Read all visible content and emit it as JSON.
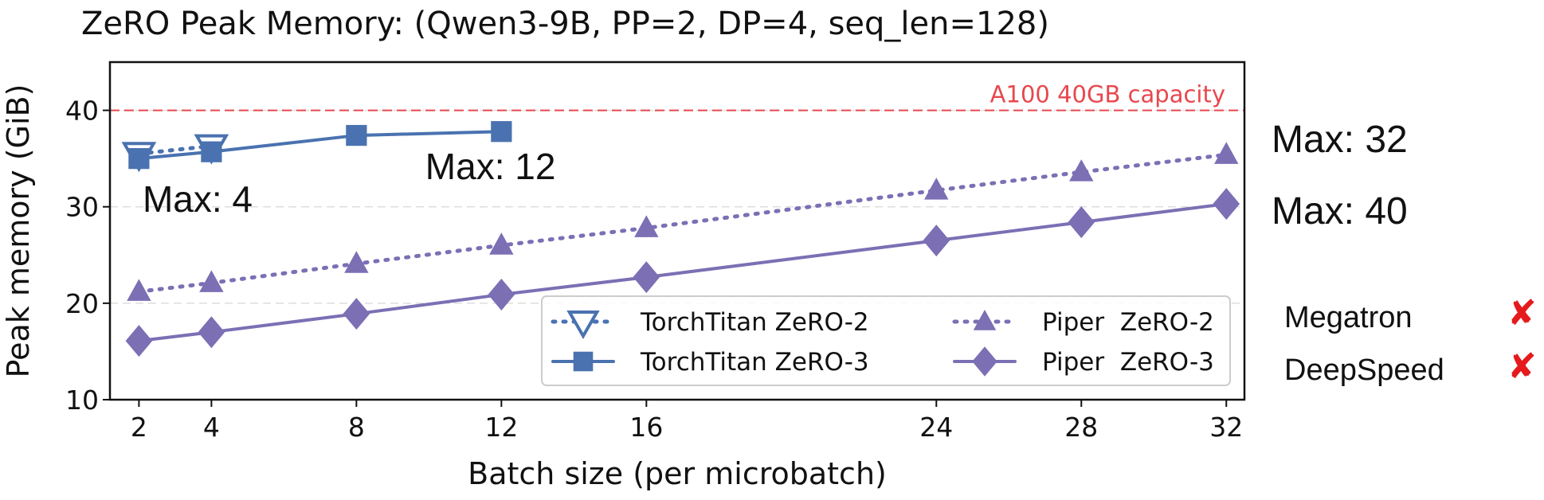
{
  "chart_data": {
    "type": "line",
    "title": "ZeRO Peak Memory: (Qwen3-9B, PP=2, DP=4, seq_len=128)",
    "xlabel": "Batch size (per microbatch)",
    "ylabel": "Peak memory (GiB)",
    "xlim": [
      1.2,
      32.5
    ],
    "ylim": [
      10,
      45
    ],
    "xticks": [
      2,
      4,
      8,
      12,
      16,
      24,
      28,
      32
    ],
    "yticks": [
      10,
      20,
      30,
      40
    ],
    "grid": "horizontal dashed",
    "legend_position": "lower-right",
    "capacity_line": {
      "y": 40,
      "label": "A100 40GB capacity",
      "color": "#e8474e"
    },
    "series": [
      {
        "name": "TorchTitan ZeRO-2",
        "color": "#4a72b0",
        "line": "dotted",
        "marker": "triangle-down-open",
        "x": [
          2,
          4
        ],
        "y": [
          35.5,
          36.3
        ]
      },
      {
        "name": "TorchTitan ZeRO-3",
        "color": "#4a72b0",
        "line": "solid",
        "marker": "square",
        "x": [
          2,
          4,
          8,
          12
        ],
        "y": [
          35.0,
          35.7,
          37.4,
          37.8
        ]
      },
      {
        "name": "Piper  ZeRO-2",
        "color": "#7c6fb4",
        "line": "dotted",
        "marker": "triangle-up",
        "x": [
          2,
          4,
          8,
          12,
          16,
          24,
          28,
          32
        ],
        "y": [
          21.2,
          22.1,
          24.1,
          26.0,
          27.8,
          31.7,
          33.6,
          35.4
        ]
      },
      {
        "name": "Piper  ZeRO-3",
        "color": "#7c6fb4",
        "line": "solid",
        "marker": "diamond",
        "x": [
          2,
          4,
          8,
          12,
          16,
          24,
          28,
          32
        ],
        "y": [
          16.1,
          17.0,
          18.9,
          20.9,
          22.7,
          26.5,
          28.4,
          30.3
        ]
      }
    ],
    "annotations": [
      {
        "text": "Max: 4",
        "x": 2.1,
        "y": 30.8
      },
      {
        "text": "Max: 12",
        "x": 9.9,
        "y": 34.2
      }
    ]
  },
  "side_labels": {
    "max_piper_zero2": "Max: 32",
    "max_piper_zero3": "Max: 40",
    "frameworks": [
      {
        "name": "Megatron",
        "status": "✘"
      },
      {
        "name": "DeepSpeed",
        "status": "✘"
      }
    ]
  }
}
